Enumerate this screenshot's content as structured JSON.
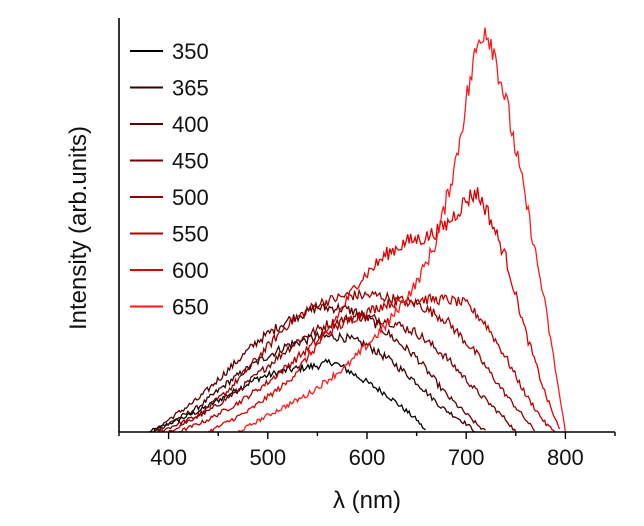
{
  "chart_data": {
    "type": "line",
    "title": "",
    "xlabel": "λ (nm)",
    "ylabel": "Intensity (arb.units)",
    "xlim": [
      350,
      850
    ],
    "ylim": [
      0,
      1.0
    ],
    "x_ticks": [
      400,
      500,
      600,
      700,
      800
    ],
    "y_ticks_labeled": false,
    "legend_position": "top-left",
    "grid": false,
    "noise_amplitude": 0.04,
    "series": [
      {
        "name": "350",
        "color": "#000000",
        "x": [
          380,
          400,
          430,
          460,
          490,
          520,
          550,
          565,
          580,
          600,
          620,
          640,
          650,
          660
        ],
        "y": [
          0.0,
          0.02,
          0.05,
          0.09,
          0.13,
          0.15,
          0.16,
          0.17,
          0.15,
          0.12,
          0.09,
          0.05,
          0.03,
          0.0
        ]
      },
      {
        "name": "365",
        "color": "#3a0000",
        "x": [
          385,
          400,
          430,
          460,
          490,
          520,
          550,
          575,
          600,
          625,
          650,
          675,
          700,
          710
        ],
        "y": [
          0.0,
          0.02,
          0.06,
          0.12,
          0.17,
          0.21,
          0.23,
          0.23,
          0.21,
          0.17,
          0.12,
          0.06,
          0.02,
          0.0
        ]
      },
      {
        "name": "400",
        "color": "#5c0000",
        "x": [
          385,
          400,
          430,
          460,
          490,
          520,
          550,
          570,
          590,
          610,
          630,
          650,
          680,
          710,
          720
        ],
        "y": [
          0.0,
          0.03,
          0.08,
          0.15,
          0.22,
          0.27,
          0.3,
          0.3,
          0.29,
          0.26,
          0.22,
          0.18,
          0.09,
          0.02,
          0.0
        ]
      },
      {
        "name": "450",
        "color": "#7a0000",
        "x": [
          390,
          410,
          440,
          470,
          500,
          530,
          560,
          590,
          620,
          650,
          680,
          710,
          740,
          750
        ],
        "y": [
          0.0,
          0.02,
          0.05,
          0.1,
          0.16,
          0.22,
          0.26,
          0.28,
          0.27,
          0.24,
          0.18,
          0.1,
          0.03,
          0.0
        ]
      },
      {
        "name": "500",
        "color": "#990000",
        "x": [
          400,
          430,
          460,
          490,
          520,
          550,
          580,
          610,
          630,
          650,
          680,
          710,
          740,
          760,
          770
        ],
        "y": [
          0.0,
          0.04,
          0.1,
          0.18,
          0.26,
          0.31,
          0.33,
          0.33,
          0.32,
          0.31,
          0.27,
          0.19,
          0.09,
          0.03,
          0.0
        ]
      },
      {
        "name": "550",
        "color": "#b80000",
        "x": [
          410,
          440,
          470,
          500,
          530,
          560,
          590,
          620,
          650,
          680,
          700,
          720,
          740,
          760,
          780,
          790
        ],
        "y": [
          0.0,
          0.03,
          0.07,
          0.12,
          0.18,
          0.24,
          0.28,
          0.31,
          0.32,
          0.32,
          0.31,
          0.26,
          0.18,
          0.09,
          0.02,
          0.0
        ]
      },
      {
        "name": "600",
        "color": "#dc0000",
        "x": [
          440,
          480,
          520,
          560,
          590,
          620,
          640,
          660,
          680,
          700,
          710,
          720,
          740,
          760,
          780,
          795
        ],
        "y": [
          0.0,
          0.05,
          0.12,
          0.24,
          0.36,
          0.43,
          0.46,
          0.47,
          0.5,
          0.56,
          0.58,
          0.54,
          0.42,
          0.24,
          0.09,
          0.0
        ]
      },
      {
        "name": "650",
        "color": "#ff1a1a",
        "x": [
          470,
          500,
          540,
          580,
          620,
          650,
          670,
          690,
          700,
          710,
          718,
          725,
          740,
          760,
          780,
          800
        ],
        "y": [
          0.0,
          0.04,
          0.09,
          0.16,
          0.26,
          0.36,
          0.46,
          0.66,
          0.8,
          0.92,
          0.98,
          0.95,
          0.8,
          0.56,
          0.3,
          0.0
        ]
      }
    ]
  }
}
